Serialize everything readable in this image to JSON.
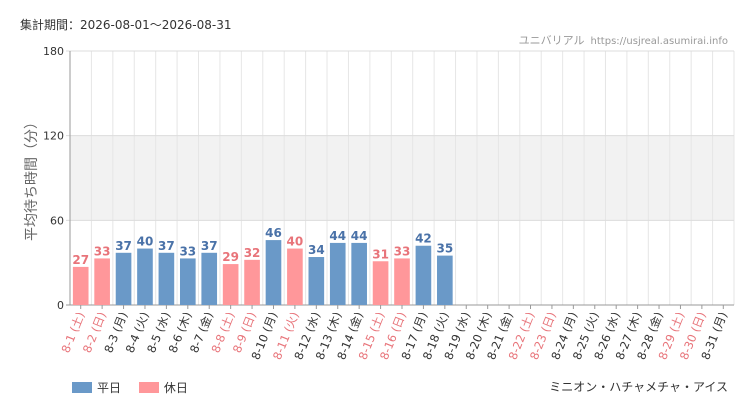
{
  "header": {
    "period": "集計期間：2026-08-01～2026-08-31",
    "site_name": "ユニバリアル",
    "site_url": "https://usjreal.asumirai.info"
  },
  "footer": {
    "attraction": "ミニオン・ハチャメチャ・アイス"
  },
  "colors": {
    "weekday": "#6a99c8",
    "holiday": "#ff979a",
    "weekday_label": "#4a72a8",
    "holiday_label": "#e8747a"
  },
  "chart_data": {
    "type": "bar",
    "ylabel": "平均待ち時間（分）",
    "ylim": [
      0,
      180
    ],
    "yticks": [
      0,
      60,
      120,
      180
    ],
    "shaded_band": [
      60,
      120
    ],
    "grid": true,
    "legend_position": "bottom-left",
    "legend": [
      {
        "key": "weekday",
        "label": "平日"
      },
      {
        "key": "holiday",
        "label": "休日"
      }
    ],
    "categories": [
      "8-1 (土)",
      "8-2 (日)",
      "8-3 (月)",
      "8-4 (火)",
      "8-5 (水)",
      "8-6 (木)",
      "8-7 (金)",
      "8-8 (土)",
      "8-9 (日)",
      "8-10 (月)",
      "8-11 (火)",
      "8-12 (水)",
      "8-13 (木)",
      "8-14 (金)",
      "8-15 (土)",
      "8-16 (日)",
      "8-17 (月)",
      "8-18 (火)",
      "8-19 (水)",
      "8-20 (木)",
      "8-21 (金)",
      "8-22 (土)",
      "8-23 (日)",
      "8-24 (月)",
      "8-25 (火)",
      "8-26 (水)",
      "8-27 (木)",
      "8-28 (金)",
      "8-29 (土)",
      "8-30 (日)",
      "8-31 (月)"
    ],
    "day_type": [
      "holiday",
      "holiday",
      "weekday",
      "weekday",
      "weekday",
      "weekday",
      "weekday",
      "holiday",
      "holiday",
      "weekday",
      "holiday",
      "weekday",
      "weekday",
      "weekday",
      "holiday",
      "holiday",
      "weekday",
      "weekday",
      "weekday",
      "weekday",
      "weekday",
      "holiday",
      "holiday",
      "weekday",
      "weekday",
      "weekday",
      "weekday",
      "weekday",
      "holiday",
      "holiday",
      "weekday"
    ],
    "values": [
      27,
      33,
      37,
      40,
      37,
      33,
      37,
      29,
      32,
      46,
      40,
      34,
      44,
      44,
      31,
      33,
      42,
      35,
      null,
      null,
      null,
      null,
      null,
      null,
      null,
      null,
      null,
      null,
      null,
      null,
      null
    ]
  }
}
